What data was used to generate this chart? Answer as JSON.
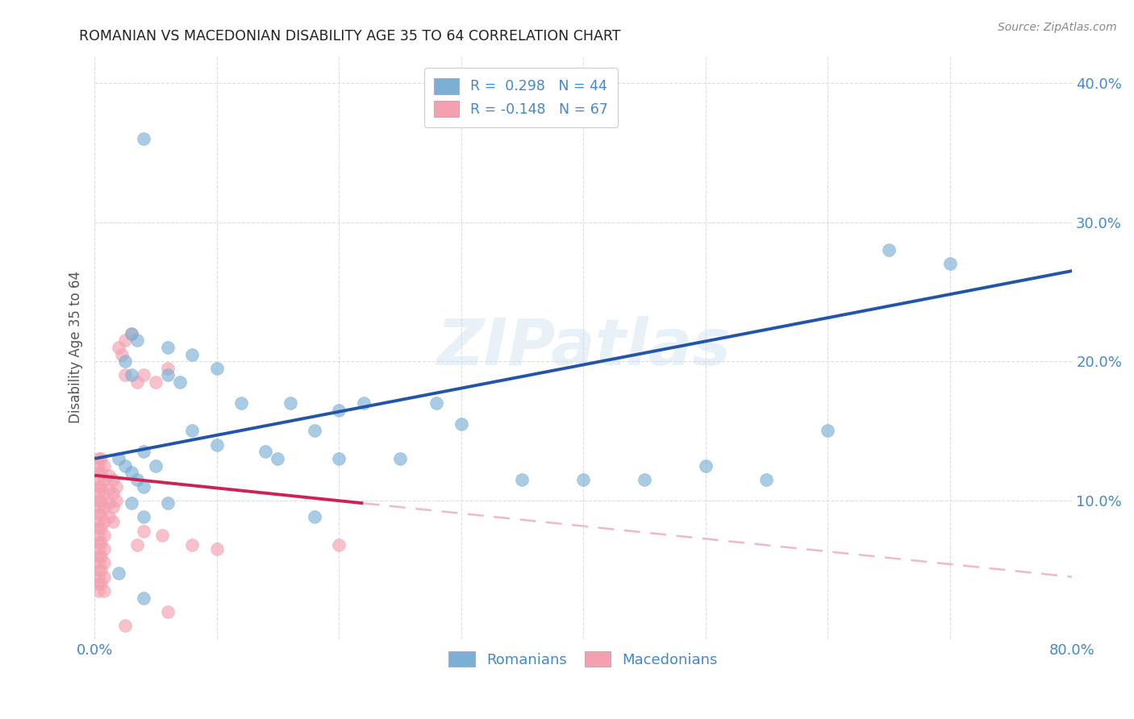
{
  "title": "ROMANIAN VS MACEDONIAN DISABILITY AGE 35 TO 64 CORRELATION CHART",
  "source": "Source: ZipAtlas.com",
  "ylabel": "Disability Age 35 to 64",
  "xlabel": "",
  "xlim": [
    0.0,
    0.8
  ],
  "ylim": [
    0.0,
    0.42
  ],
  "xticks": [
    0.0,
    0.1,
    0.2,
    0.3,
    0.4,
    0.5,
    0.6,
    0.7,
    0.8
  ],
  "yticks": [
    0.0,
    0.1,
    0.2,
    0.3,
    0.4
  ],
  "xticklabels": [
    "0.0%",
    "",
    "",
    "",
    "",
    "",
    "",
    "",
    "80.0%"
  ],
  "yticklabels": [
    "",
    "10.0%",
    "20.0%",
    "30.0%",
    "40.0%"
  ],
  "grid_color": "#dddddd",
  "background_color": "#ffffff",
  "watermark": "ZIPatlas",
  "romanian_color": "#7bafd4",
  "macedonian_color": "#f4a0b0",
  "trendline_romanian_color": "#2255aa",
  "trendline_macedonian_solid_color": "#cc2255",
  "trendline_macedonian_dashed_color": "#f0b8c8",
  "axis_label_color": "#4488cc",
  "title_color": "#222222",
  "trendline_rom_x0": 0.0,
  "trendline_rom_y0": 0.13,
  "trendline_rom_x1": 0.8,
  "trendline_rom_y1": 0.265,
  "trendline_mac_x0": 0.0,
  "trendline_mac_y0": 0.118,
  "trendline_mac_x1": 0.8,
  "trendline_mac_y1": 0.045,
  "trendline_mac_solid_end": 0.22,
  "romanian_x": [
    0.02,
    0.025,
    0.03,
    0.035,
    0.04,
    0.03,
    0.035,
    0.025,
    0.03,
    0.04,
    0.05,
    0.06,
    0.06,
    0.07,
    0.08,
    0.08,
    0.1,
    0.1,
    0.12,
    0.14,
    0.15,
    0.16,
    0.18,
    0.2,
    0.2,
    0.22,
    0.25,
    0.28,
    0.3,
    0.35,
    0.4,
    0.45,
    0.5,
    0.55,
    0.6,
    0.65,
    0.7,
    0.04,
    0.06,
    0.03,
    0.04,
    0.02,
    0.04,
    0.18
  ],
  "romanian_y": [
    0.13,
    0.125,
    0.12,
    0.115,
    0.11,
    0.22,
    0.215,
    0.2,
    0.19,
    0.135,
    0.125,
    0.21,
    0.19,
    0.185,
    0.205,
    0.15,
    0.14,
    0.195,
    0.17,
    0.135,
    0.13,
    0.17,
    0.15,
    0.165,
    0.13,
    0.17,
    0.13,
    0.17,
    0.155,
    0.115,
    0.115,
    0.115,
    0.125,
    0.115,
    0.15,
    0.28,
    0.27,
    0.36,
    0.098,
    0.098,
    0.088,
    0.048,
    0.03,
    0.088
  ],
  "macedonian_x": [
    0.003,
    0.003,
    0.003,
    0.003,
    0.003,
    0.003,
    0.003,
    0.003,
    0.003,
    0.003,
    0.003,
    0.003,
    0.003,
    0.003,
    0.003,
    0.003,
    0.003,
    0.003,
    0.003,
    0.003,
    0.005,
    0.005,
    0.005,
    0.005,
    0.005,
    0.005,
    0.005,
    0.005,
    0.005,
    0.005,
    0.008,
    0.008,
    0.008,
    0.008,
    0.008,
    0.008,
    0.008,
    0.008,
    0.008,
    0.008,
    0.012,
    0.012,
    0.012,
    0.012,
    0.015,
    0.015,
    0.015,
    0.015,
    0.018,
    0.018,
    0.02,
    0.022,
    0.025,
    0.025,
    0.03,
    0.035,
    0.04,
    0.04,
    0.05,
    0.055,
    0.06,
    0.08,
    0.1,
    0.025,
    0.035,
    0.06,
    0.2
  ],
  "macedonian_y": [
    0.13,
    0.125,
    0.12,
    0.115,
    0.11,
    0.105,
    0.1,
    0.095,
    0.09,
    0.085,
    0.08,
    0.075,
    0.07,
    0.065,
    0.06,
    0.055,
    0.05,
    0.045,
    0.04,
    0.035,
    0.13,
    0.12,
    0.11,
    0.1,
    0.09,
    0.08,
    0.07,
    0.06,
    0.05,
    0.04,
    0.125,
    0.115,
    0.105,
    0.095,
    0.085,
    0.075,
    0.065,
    0.055,
    0.045,
    0.035,
    0.118,
    0.108,
    0.098,
    0.088,
    0.115,
    0.105,
    0.095,
    0.085,
    0.11,
    0.1,
    0.21,
    0.205,
    0.215,
    0.19,
    0.22,
    0.185,
    0.19,
    0.078,
    0.185,
    0.075,
    0.195,
    0.068,
    0.065,
    0.01,
    0.068,
    0.02,
    0.068
  ]
}
